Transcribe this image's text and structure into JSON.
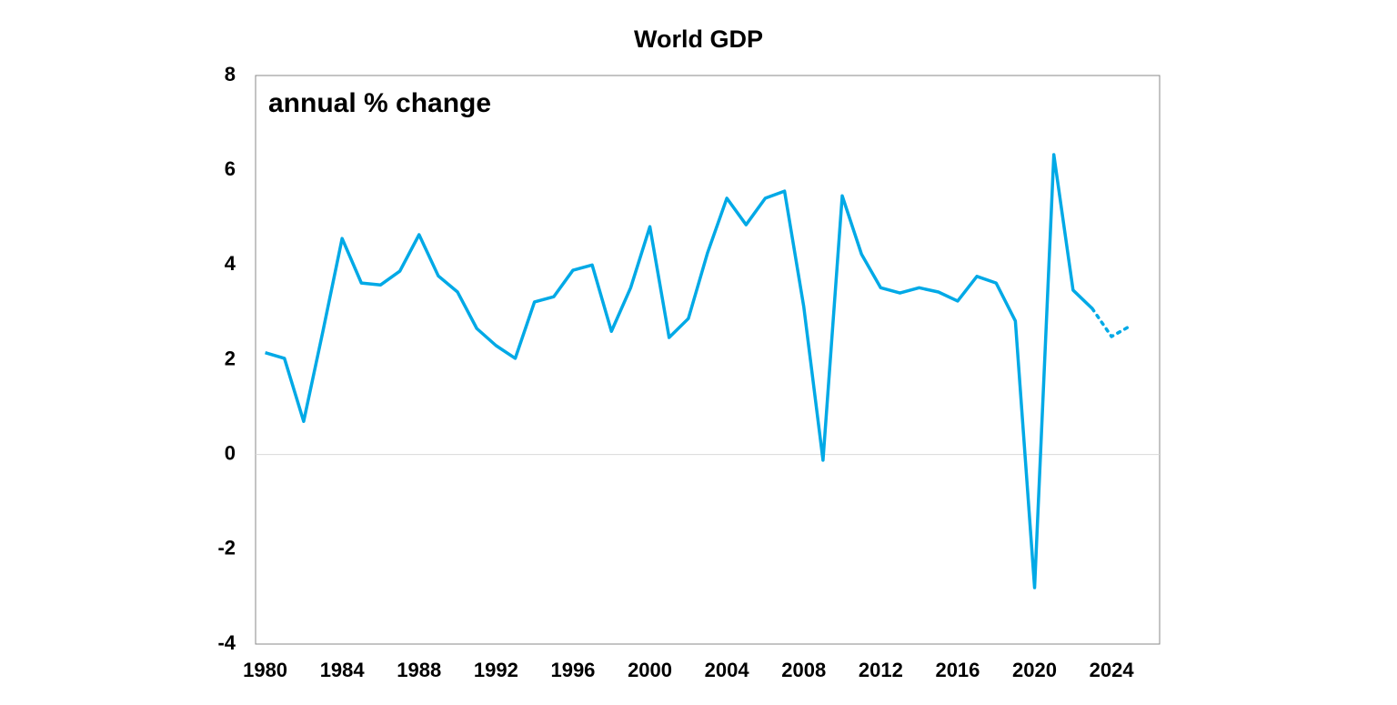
{
  "chart_data": {
    "type": "line",
    "title": "World GDP",
    "annotation": "annual % change",
    "x": [
      1980,
      1981,
      1982,
      1983,
      1984,
      1985,
      1986,
      1987,
      1988,
      1989,
      1990,
      1991,
      1992,
      1993,
      1994,
      1995,
      1996,
      1997,
      1998,
      1999,
      2000,
      2001,
      2002,
      2003,
      2004,
      2005,
      2006,
      2007,
      2008,
      2009,
      2010,
      2011,
      2012,
      2013,
      2014,
      2015,
      2016,
      2017,
      2018,
      2019,
      2020,
      2021,
      2022,
      2023,
      2024,
      2025
    ],
    "series": [
      {
        "color": "#00a9e6",
        "line_style": "solid",
        "values": [
          2.15,
          2.03,
          0.7,
          2.6,
          4.56,
          3.62,
          3.58,
          3.87,
          4.64,
          3.77,
          3.43,
          2.66,
          2.3,
          2.03,
          3.22,
          3.33,
          3.89,
          4.0,
          2.6,
          3.52,
          4.81,
          2.47,
          2.87,
          4.26,
          5.41,
          4.85,
          5.41,
          5.56,
          3.12,
          -0.12,
          5.46,
          4.23,
          3.52,
          3.41,
          3.52,
          3.43,
          3.24,
          3.76,
          3.62,
          2.82,
          -2.81,
          6.33,
          3.47,
          3.08,
          null,
          null
        ]
      },
      {
        "color": "#00a9e6",
        "line_style": "dotted",
        "values": [
          null,
          null,
          null,
          null,
          null,
          null,
          null,
          null,
          null,
          null,
          null,
          null,
          null,
          null,
          null,
          null,
          null,
          null,
          null,
          null,
          null,
          null,
          null,
          null,
          null,
          null,
          null,
          null,
          null,
          null,
          null,
          null,
          null,
          null,
          null,
          null,
          null,
          null,
          null,
          null,
          null,
          null,
          null,
          3.08,
          2.49,
          2.72
        ]
      }
    ],
    "xlim": [
      1979.5,
      2026.5
    ],
    "xticks": [
      1980,
      1984,
      1988,
      1992,
      1996,
      2000,
      2004,
      2008,
      2012,
      2016,
      2020,
      2024
    ],
    "ylim": [
      -4,
      8
    ],
    "yticks": [
      -4,
      -2,
      0,
      2,
      4,
      6,
      8
    ],
    "zero_line": true
  }
}
